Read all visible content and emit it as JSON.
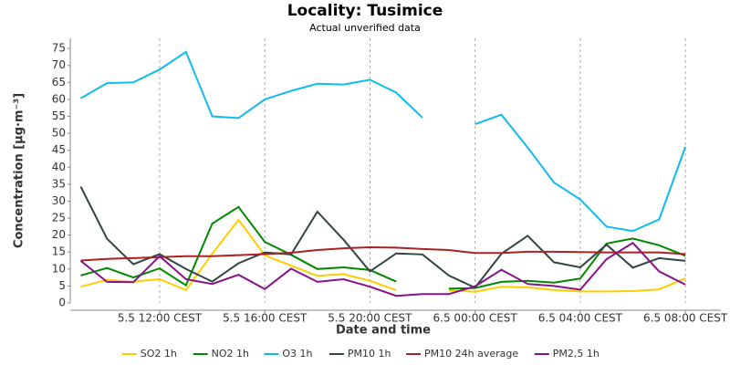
{
  "chart_data": {
    "type": "line",
    "title": "Locality: Tusimice",
    "subtitle": "Actual unverified data",
    "y_label": "Concentration [µg·m⁻³]",
    "x_label": "Date and time",
    "x": [
      9,
      10,
      11,
      12,
      13,
      14,
      15,
      16,
      17,
      18,
      19,
      20,
      21,
      22,
      23,
      24,
      25,
      26,
      27,
      28,
      29,
      30,
      31,
      32
    ],
    "xlim": [
      8.6,
      33.35
    ],
    "xticks": [
      {
        "value": 12,
        "label": "5.5 12:00 CEST"
      },
      {
        "value": 16,
        "label": "5.5 16:00 CEST"
      },
      {
        "value": 20,
        "label": "5.5 20:00 CEST"
      },
      {
        "value": 24,
        "label": "6.5 00:00 CEST"
      },
      {
        "value": 28,
        "label": "6.5 04:00 CEST"
      },
      {
        "value": 32,
        "label": "6.5 08:00 CEST"
      }
    ],
    "ylim": [
      0,
      78
    ],
    "yticks": [
      0,
      5,
      10,
      15,
      20,
      25,
      30,
      35,
      40,
      45,
      50,
      55,
      60,
      65,
      70,
      75
    ],
    "grid": true,
    "legend": "bottom",
    "series": [
      {
        "name": "SO2 1h",
        "color": "#ffcc00",
        "values": [
          4.8,
          6.8,
          6.3,
          7,
          3.8,
          14.5,
          24.5,
          14,
          11,
          8,
          8.5,
          6.5,
          3.8,
          null,
          3.7,
          3.3,
          4.8,
          4.6,
          3.8,
          3.4,
          3.4,
          3.5,
          4,
          7.2
        ]
      },
      {
        "name": "NO2 1h",
        "color": "#008800",
        "values": [
          8.1,
          10.3,
          7.5,
          10.2,
          5.2,
          23.4,
          28.3,
          18,
          14.2,
          10,
          10.5,
          9.7,
          6.3,
          null,
          4.2,
          4.4,
          6.2,
          6.5,
          6,
          7.2,
          17.5,
          19,
          17,
          13.9
        ]
      },
      {
        "name": "O3 1h",
        "color": "#11bbee",
        "values": [
          60.3,
          64.8,
          65,
          68.8,
          74,
          55,
          54.5,
          60,
          62.5,
          64.6,
          64.4,
          65.8,
          62,
          54.6,
          null,
          52.7,
          55.5,
          45.8,
          35.5,
          30.5,
          22.5,
          21.2,
          24.6,
          46
        ]
      },
      {
        "name": "PM10 1h",
        "color": "#334444",
        "values": [
          34.3,
          18.9,
          11.4,
          14.4,
          10,
          6.3,
          11.7,
          14.9,
          14.3,
          26.9,
          18.6,
          9.3,
          14.6,
          14.3,
          8.1,
          4.5,
          14.5,
          19.8,
          12,
          10.5,
          17.2,
          10.4,
          13.2,
          12.4
        ]
      },
      {
        "name": "PM10 24h average",
        "color": "#aa2222",
        "values": [
          12.5,
          13,
          13.2,
          13.5,
          13.8,
          13.8,
          14.1,
          14.4,
          14.8,
          15.6,
          16.1,
          16.4,
          16.3,
          15.9,
          15.6,
          14.7,
          14.7,
          15.1,
          15.1,
          15,
          14.9,
          14.9,
          14.9,
          14.4
        ]
      },
      {
        "name": "PM2,5 1h",
        "color": "#881188",
        "values": [
          12.4,
          6.2,
          6.1,
          13.8,
          7,
          5.6,
          8.3,
          4.1,
          10.1,
          6.2,
          7,
          4.8,
          2.1,
          2.6,
          2.6,
          4.9,
          9.8,
          5.6,
          5,
          3.9,
          12.9,
          17.7,
          9.3,
          5.4
        ]
      }
    ]
  }
}
